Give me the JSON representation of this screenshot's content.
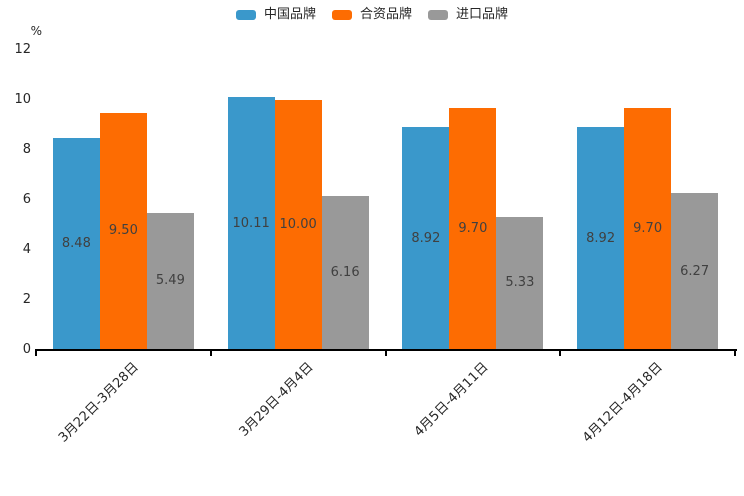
{
  "chart_data": {
    "type": "bar",
    "title": "",
    "xlabel": "",
    "ylabel": "%",
    "categories": [
      "3月22日-3月28日",
      "3月29日-4月4日",
      "4月5日-4月11日",
      "4月12日-4月18日"
    ],
    "series": [
      {
        "name": "中国品牌",
        "color": "#3a98cb",
        "values": [
          8.48,
          10.11,
          8.92,
          8.92
        ]
      },
      {
        "name": "合资品牌",
        "color": "#fd6c02",
        "values": [
          9.5,
          10.0,
          9.7,
          9.7
        ]
      },
      {
        "name": "进口品牌",
        "color": "#999999",
        "values": [
          5.49,
          6.16,
          5.33,
          6.27
        ]
      }
    ],
    "value_label_format": "2dp",
    "ylim": [
      0,
      12
    ],
    "yticks": [
      0,
      2,
      4,
      6,
      8,
      10,
      12
    ],
    "legend_position": "top-center",
    "grid": false,
    "bar_label_color": "#404040",
    "axis_color": "#000000",
    "text_color": "#262626"
  }
}
